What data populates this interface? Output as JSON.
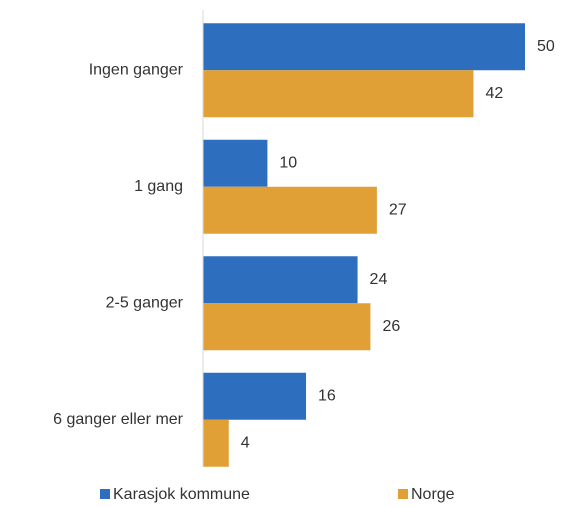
{
  "chart_data": {
    "type": "hbar",
    "categories": [
      "Ingen ganger",
      "1 gang",
      "2-5 ganger",
      "6 ganger eller mer"
    ],
    "series": [
      {
        "name": "Karasjok kommune",
        "color": "#2e6ebf",
        "values": [
          50,
          10,
          24,
          16
        ]
      },
      {
        "name": "Norge",
        "color": "#e0a035",
        "values": [
          42,
          27,
          26,
          4
        ]
      }
    ],
    "xlim": [
      0,
      50
    ],
    "legend": "bottom"
  }
}
